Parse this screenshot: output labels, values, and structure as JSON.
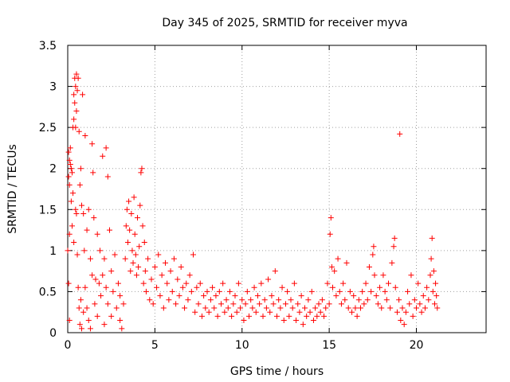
{
  "chart_data": {
    "type": "scatter",
    "title": "Day 345 of 2025, SRMTID for receiver myva",
    "xlabel": "GPS time / hours",
    "ylabel": "SRMTID / TECUs",
    "xlim": [
      0,
      24
    ],
    "ylim": [
      0,
      3.5
    ],
    "xticks": [
      0,
      5,
      10,
      15,
      20
    ],
    "xtick_labels": [
      "0",
      "5",
      "10",
      "15",
      "20"
    ],
    "yticks": [
      0,
      0.5,
      1,
      1.5,
      2,
      2.5,
      3,
      3.5
    ],
    "ytick_labels": [
      "0",
      "0.5",
      "1",
      "1.5",
      "2",
      "2.5",
      "3",
      "3.5"
    ],
    "grid": true,
    "marker": "plus",
    "series_color": "#ff0000",
    "series": [
      {
        "name": "SRMTID",
        "points": [
          [
            0.0,
            1.0
          ],
          [
            0.05,
            2.2
          ],
          [
            0.05,
            1.9
          ],
          [
            0.05,
            0.6
          ],
          [
            0.1,
            2.1
          ],
          [
            0.1,
            1.8
          ],
          [
            0.1,
            1.2
          ],
          [
            0.1,
            0.15
          ],
          [
            0.15,
            2.25
          ],
          [
            0.15,
            2.05
          ],
          [
            0.2,
            2.0
          ],
          [
            0.2,
            1.6
          ],
          [
            0.25,
            1.95
          ],
          [
            0.25,
            1.3
          ],
          [
            0.3,
            2.5
          ],
          [
            0.3,
            1.7
          ],
          [
            0.35,
            2.9
          ],
          [
            0.35,
            2.6
          ],
          [
            0.35,
            1.1
          ],
          [
            0.4,
            3.1
          ],
          [
            0.4,
            2.8
          ],
          [
            0.45,
            3.0
          ],
          [
            0.45,
            2.5
          ],
          [
            0.45,
            1.5
          ],
          [
            0.5,
            3.15
          ],
          [
            0.5,
            2.7
          ],
          [
            0.5,
            1.45
          ],
          [
            0.55,
            2.95
          ],
          [
            0.55,
            0.95
          ],
          [
            0.6,
            3.1
          ],
          [
            0.6,
            0.55
          ],
          [
            0.65,
            2.45
          ],
          [
            0.65,
            0.3
          ],
          [
            0.7,
            1.8
          ],
          [
            0.7,
            0.1
          ],
          [
            0.75,
            2.0
          ],
          [
            0.75,
            0.4
          ],
          [
            0.8,
            1.55
          ],
          [
            0.8,
            0.05
          ],
          [
            0.85,
            2.9
          ],
          [
            0.9,
            1.45
          ],
          [
            0.9,
            0.25
          ],
          [
            0.95,
            1.0
          ],
          [
            1.0,
            2.4
          ],
          [
            1.0,
            0.55
          ],
          [
            1.1,
            1.25
          ],
          [
            1.1,
            0.3
          ],
          [
            1.2,
            1.5
          ],
          [
            1.2,
            0.15
          ],
          [
            1.3,
            0.9
          ],
          [
            1.3,
            0.05
          ],
          [
            1.4,
            2.3
          ],
          [
            1.4,
            0.7
          ],
          [
            1.45,
            1.95
          ],
          [
            1.5,
            1.4
          ],
          [
            1.55,
            0.35
          ],
          [
            1.6,
            0.65
          ],
          [
            1.7,
            1.2
          ],
          [
            1.7,
            0.2
          ],
          [
            1.8,
            0.6
          ],
          [
            1.85,
            1.0
          ],
          [
            1.9,
            0.45
          ],
          [
            2.0,
            2.15
          ],
          [
            2.0,
            0.7
          ],
          [
            2.1,
            0.9
          ],
          [
            2.1,
            0.1
          ],
          [
            2.2,
            2.25
          ],
          [
            2.2,
            0.55
          ],
          [
            2.3,
            1.9
          ],
          [
            2.3,
            0.35
          ],
          [
            2.4,
            1.25
          ],
          [
            2.5,
            0.75
          ],
          [
            2.5,
            0.2
          ],
          [
            2.6,
            0.5
          ],
          [
            2.7,
            0.95
          ],
          [
            2.8,
            0.3
          ],
          [
            2.9,
            0.6
          ],
          [
            3.0,
            0.15
          ],
          [
            3.0,
            0.45
          ],
          [
            3.1,
            0.05
          ],
          [
            3.2,
            0.35
          ],
          [
            3.3,
            0.9
          ],
          [
            3.35,
            1.3
          ],
          [
            3.4,
            1.5
          ],
          [
            3.45,
            1.1
          ],
          [
            3.5,
            1.6
          ],
          [
            3.55,
            1.25
          ],
          [
            3.6,
            0.75
          ],
          [
            3.65,
            1.45
          ],
          [
            3.7,
            1.0
          ],
          [
            3.75,
            0.85
          ],
          [
            3.8,
            1.65
          ],
          [
            3.85,
            1.2
          ],
          [
            3.9,
            0.95
          ],
          [
            3.95,
            0.7
          ],
          [
            4.0,
            1.4
          ],
          [
            4.05,
            0.8
          ],
          [
            4.1,
            1.05
          ],
          [
            4.15,
            1.55
          ],
          [
            4.2,
            1.95
          ],
          [
            4.25,
            2.0
          ],
          [
            4.3,
            1.3
          ],
          [
            4.35,
            0.6
          ],
          [
            4.4,
            1.1
          ],
          [
            4.45,
            0.75
          ],
          [
            4.5,
            0.5
          ],
          [
            4.6,
            0.9
          ],
          [
            4.7,
            0.4
          ],
          [
            4.8,
            0.65
          ],
          [
            4.9,
            0.35
          ],
          [
            5.0,
            0.8
          ],
          [
            5.1,
            0.55
          ],
          [
            5.2,
            0.95
          ],
          [
            5.3,
            0.45
          ],
          [
            5.4,
            0.7
          ],
          [
            5.5,
            0.3
          ],
          [
            5.6,
            0.85
          ],
          [
            5.7,
            0.6
          ],
          [
            5.8,
            0.4
          ],
          [
            5.9,
            0.75
          ],
          [
            6.0,
            0.5
          ],
          [
            6.1,
            0.9
          ],
          [
            6.2,
            0.35
          ],
          [
            6.3,
            0.65
          ],
          [
            6.4,
            0.45
          ],
          [
            6.5,
            0.8
          ],
          [
            6.6,
            0.55
          ],
          [
            6.7,
            0.3
          ],
          [
            6.8,
            0.6
          ],
          [
            6.9,
            0.4
          ],
          [
            7.0,
            0.7
          ],
          [
            7.1,
            0.5
          ],
          [
            7.2,
            0.95
          ],
          [
            7.3,
            0.25
          ],
          [
            7.4,
            0.55
          ],
          [
            7.5,
            0.35
          ],
          [
            7.6,
            0.6
          ],
          [
            7.7,
            0.2
          ],
          [
            7.8,
            0.45
          ],
          [
            7.9,
            0.3
          ],
          [
            8.0,
            0.5
          ],
          [
            8.1,
            0.25
          ],
          [
            8.2,
            0.4
          ],
          [
            8.3,
            0.55
          ],
          [
            8.4,
            0.3
          ],
          [
            8.5,
            0.45
          ],
          [
            8.6,
            0.2
          ],
          [
            8.7,
            0.5
          ],
          [
            8.8,
            0.35
          ],
          [
            8.9,
            0.6
          ],
          [
            9.0,
            0.25
          ],
          [
            9.1,
            0.4
          ],
          [
            9.2,
            0.3
          ],
          [
            9.3,
            0.5
          ],
          [
            9.4,
            0.2
          ],
          [
            9.5,
            0.35
          ],
          [
            9.6,
            0.45
          ],
          [
            9.7,
            0.25
          ],
          [
            9.8,
            0.6
          ],
          [
            9.9,
            0.3
          ],
          [
            10.0,
            0.4
          ],
          [
            10.1,
            0.15
          ],
          [
            10.2,
            0.35
          ],
          [
            10.3,
            0.5
          ],
          [
            10.4,
            0.2
          ],
          [
            10.5,
            0.4
          ],
          [
            10.6,
            0.3
          ],
          [
            10.7,
            0.55
          ],
          [
            10.8,
            0.25
          ],
          [
            10.9,
            0.45
          ],
          [
            11.0,
            0.35
          ],
          [
            11.1,
            0.6
          ],
          [
            11.2,
            0.2
          ],
          [
            11.3,
            0.4
          ],
          [
            11.4,
            0.3
          ],
          [
            11.5,
            0.65
          ],
          [
            11.6,
            0.25
          ],
          [
            11.7,
            0.45
          ],
          [
            11.8,
            0.35
          ],
          [
            11.9,
            0.75
          ],
          [
            12.0,
            0.2
          ],
          [
            12.1,
            0.4
          ],
          [
            12.2,
            0.3
          ],
          [
            12.3,
            0.55
          ],
          [
            12.4,
            0.15
          ],
          [
            12.5,
            0.35
          ],
          [
            12.6,
            0.5
          ],
          [
            12.7,
            0.2
          ],
          [
            12.8,
            0.4
          ],
          [
            12.9,
            0.3
          ],
          [
            13.0,
            0.6
          ],
          [
            13.1,
            0.15
          ],
          [
            13.2,
            0.35
          ],
          [
            13.3,
            0.25
          ],
          [
            13.4,
            0.45
          ],
          [
            13.5,
            0.1
          ],
          [
            13.6,
            0.3
          ],
          [
            13.7,
            0.2
          ],
          [
            13.8,
            0.4
          ],
          [
            13.9,
            0.25
          ],
          [
            14.0,
            0.5
          ],
          [
            14.1,
            0.15
          ],
          [
            14.2,
            0.3
          ],
          [
            14.3,
            0.2
          ],
          [
            14.4,
            0.35
          ],
          [
            14.5,
            0.25
          ],
          [
            14.6,
            0.4
          ],
          [
            14.7,
            0.2
          ],
          [
            14.8,
            0.3
          ],
          [
            14.9,
            0.6
          ],
          [
            15.0,
            0.35
          ],
          [
            15.05,
            1.2
          ],
          [
            15.1,
            1.4
          ],
          [
            15.15,
            0.8
          ],
          [
            15.2,
            0.55
          ],
          [
            15.3,
            0.75
          ],
          [
            15.4,
            0.45
          ],
          [
            15.5,
            0.9
          ],
          [
            15.6,
            0.5
          ],
          [
            15.7,
            0.35
          ],
          [
            15.8,
            0.6
          ],
          [
            15.9,
            0.4
          ],
          [
            16.0,
            0.85
          ],
          [
            16.1,
            0.3
          ],
          [
            16.2,
            0.5
          ],
          [
            16.3,
            0.25
          ],
          [
            16.4,
            0.45
          ],
          [
            16.5,
            0.3
          ],
          [
            16.6,
            0.2
          ],
          [
            16.7,
            0.4
          ],
          [
            16.8,
            0.3
          ],
          [
            16.9,
            0.5
          ],
          [
            17.0,
            0.35
          ],
          [
            17.1,
            0.6
          ],
          [
            17.2,
            0.4
          ],
          [
            17.3,
            0.8
          ],
          [
            17.4,
            0.5
          ],
          [
            17.5,
            0.95
          ],
          [
            17.55,
            1.05
          ],
          [
            17.6,
            0.7
          ],
          [
            17.7,
            0.45
          ],
          [
            17.8,
            0.35
          ],
          [
            17.9,
            0.55
          ],
          [
            18.0,
            0.3
          ],
          [
            18.1,
            0.7
          ],
          [
            18.2,
            0.5
          ],
          [
            18.3,
            0.4
          ],
          [
            18.4,
            0.6
          ],
          [
            18.5,
            0.3
          ],
          [
            18.6,
            0.85
          ],
          [
            18.7,
            1.05
          ],
          [
            18.75,
            1.15
          ],
          [
            18.8,
            0.55
          ],
          [
            18.9,
            0.25
          ],
          [
            19.0,
            0.4
          ],
          [
            19.05,
            2.42
          ],
          [
            19.1,
            0.15
          ],
          [
            19.2,
            0.3
          ],
          [
            19.3,
            0.1
          ],
          [
            19.4,
            0.25
          ],
          [
            19.5,
            0.5
          ],
          [
            19.6,
            0.35
          ],
          [
            19.7,
            0.7
          ],
          [
            19.8,
            0.2
          ],
          [
            19.9,
            0.4
          ],
          [
            20.0,
            0.3
          ],
          [
            20.1,
            0.6
          ],
          [
            20.2,
            0.35
          ],
          [
            20.3,
            0.25
          ],
          [
            20.4,
            0.45
          ],
          [
            20.5,
            0.3
          ],
          [
            20.6,
            0.55
          ],
          [
            20.7,
            0.4
          ],
          [
            20.8,
            0.7
          ],
          [
            20.85,
            0.9
          ],
          [
            20.9,
            1.15
          ],
          [
            20.95,
            0.5
          ],
          [
            21.0,
            0.75
          ],
          [
            21.05,
            0.35
          ],
          [
            21.1,
            0.6
          ],
          [
            21.15,
            0.45
          ],
          [
            21.2,
            0.3
          ]
        ]
      }
    ]
  }
}
